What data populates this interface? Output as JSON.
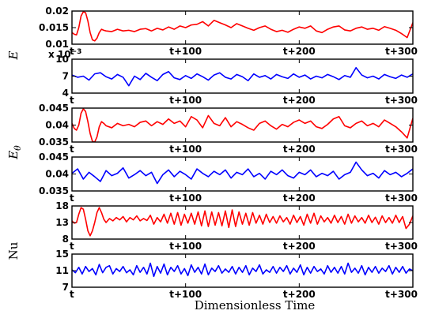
{
  "chart_data": [
    {
      "type": "line",
      "panel": 1,
      "ylim": [
        0.01,
        0.02
      ],
      "yticks": [
        "0.01",
        "0.015",
        "0.02"
      ],
      "xticks": [
        "t",
        "t+100",
        "t+200",
        "t+300"
      ],
      "xlim": [
        0,
        300
      ],
      "series": [
        {
          "color": "#ff0000",
          "x": [
            0,
            2,
            4,
            6,
            8,
            10,
            12,
            14,
            16,
            18,
            20,
            22,
            24,
            26,
            28,
            30,
            35,
            40,
            45,
            50,
            55,
            60,
            65,
            70,
            75,
            80,
            85,
            90,
            95,
            100,
            105,
            110,
            115,
            120,
            125,
            130,
            135,
            140,
            145,
            150,
            155,
            160,
            165,
            170,
            175,
            180,
            185,
            190,
            195,
            200,
            205,
            210,
            215,
            220,
            225,
            230,
            235,
            240,
            245,
            250,
            255,
            260,
            265,
            270,
            275,
            280,
            285,
            290,
            295,
            300
          ],
          "y": [
            0.0135,
            0.013,
            0.0128,
            0.015,
            0.0185,
            0.0198,
            0.0195,
            0.017,
            0.0135,
            0.0113,
            0.011,
            0.0118,
            0.0135,
            0.0145,
            0.0142,
            0.014,
            0.0138,
            0.0145,
            0.014,
            0.0142,
            0.0138,
            0.0145,
            0.0147,
            0.014,
            0.0148,
            0.0143,
            0.0152,
            0.0145,
            0.0155,
            0.015,
            0.0158,
            0.016,
            0.0168,
            0.0155,
            0.0172,
            0.0165,
            0.0158,
            0.015,
            0.0162,
            0.0155,
            0.0148,
            0.0142,
            0.015,
            0.0155,
            0.0145,
            0.0138,
            0.0142,
            0.0136,
            0.0145,
            0.0152,
            0.0148,
            0.0155,
            0.014,
            0.0135,
            0.0145,
            0.0152,
            0.0155,
            0.0143,
            0.014,
            0.0148,
            0.0152,
            0.0145,
            0.0148,
            0.0142,
            0.0153,
            0.0148,
            0.0142,
            0.0132,
            0.012,
            0.0165
          ]
        }
      ]
    },
    {
      "type": "line",
      "panel": 2,
      "ylim": [
        4,
        10
      ],
      "yticks": [
        "4",
        "7",
        "10"
      ],
      "scale_note": "x 10",
      "scale_exp": "−3",
      "xticks": [
        "t",
        "t+100",
        "t+200",
        "t+300"
      ],
      "xlim": [
        0,
        300
      ],
      "series": [
        {
          "color": "#0000ff",
          "x": [
            0,
            5,
            10,
            15,
            20,
            25,
            30,
            35,
            40,
            45,
            50,
            55,
            60,
            65,
            70,
            75,
            80,
            85,
            90,
            95,
            100,
            105,
            110,
            115,
            120,
            125,
            130,
            135,
            140,
            145,
            150,
            155,
            160,
            165,
            170,
            175,
            180,
            185,
            190,
            195,
            200,
            205,
            210,
            215,
            220,
            225,
            230,
            235,
            240,
            245,
            250,
            255,
            260,
            265,
            270,
            275,
            280,
            285,
            290,
            295,
            300
          ],
          "y": [
            7.2,
            6.8,
            7.0,
            6.3,
            7.4,
            7.6,
            6.9,
            6.5,
            7.3,
            6.8,
            5.3,
            7.0,
            6.4,
            7.5,
            6.8,
            6.2,
            7.3,
            7.8,
            6.7,
            6.4,
            7.1,
            6.6,
            7.4,
            6.9,
            6.3,
            7.2,
            7.6,
            6.8,
            6.5,
            7.3,
            6.9,
            6.2,
            7.4,
            6.8,
            7.1,
            6.5,
            7.3,
            6.9,
            6.6,
            7.4,
            6.8,
            7.2,
            6.5,
            7.0,
            6.7,
            7.3,
            6.9,
            6.4,
            7.1,
            6.8,
            8.5,
            7.2,
            6.7,
            7.0,
            6.5,
            7.3,
            6.9,
            6.6,
            7.2,
            6.8,
            7.4
          ]
        }
      ]
    },
    {
      "type": "line",
      "panel": 3,
      "ylim": [
        0.035,
        0.045
      ],
      "yticks": [
        "0.035",
        "0.04",
        "0.045"
      ],
      "xticks": [
        "t",
        "t+100",
        "t+200",
        "t+300"
      ],
      "xlim": [
        0,
        300
      ],
      "series": [
        {
          "color": "#ff0000",
          "x": [
            0,
            2,
            4,
            6,
            8,
            10,
            12,
            14,
            16,
            18,
            20,
            22,
            24,
            26,
            28,
            30,
            35,
            40,
            45,
            50,
            55,
            60,
            65,
            70,
            75,
            80,
            85,
            90,
            95,
            100,
            105,
            110,
            115,
            120,
            125,
            130,
            135,
            140,
            145,
            150,
            155,
            160,
            165,
            170,
            175,
            180,
            185,
            190,
            195,
            200,
            205,
            210,
            215,
            220,
            225,
            230,
            235,
            240,
            245,
            250,
            255,
            260,
            265,
            270,
            275,
            280,
            285,
            290,
            295,
            300
          ],
          "y": [
            0.0405,
            0.039,
            0.0385,
            0.04,
            0.0435,
            0.0448,
            0.044,
            0.041,
            0.0375,
            0.0352,
            0.035,
            0.0365,
            0.0395,
            0.041,
            0.0405,
            0.0398,
            0.0392,
            0.0405,
            0.0398,
            0.0402,
            0.0395,
            0.0408,
            0.0412,
            0.0398,
            0.041,
            0.0402,
            0.0418,
            0.0405,
            0.0412,
            0.0395,
            0.0425,
            0.0415,
            0.0392,
            0.0428,
            0.0405,
            0.0398,
            0.0422,
            0.0395,
            0.041,
            0.0402,
            0.0392,
            0.0385,
            0.0405,
            0.0412,
            0.0398,
            0.0388,
            0.0402,
            0.0395,
            0.0408,
            0.0415,
            0.0405,
            0.0412,
            0.0395,
            0.039,
            0.0402,
            0.0418,
            0.0425,
            0.0398,
            0.0392,
            0.0405,
            0.0412,
            0.0398,
            0.0405,
            0.0395,
            0.0415,
            0.0405,
            0.0395,
            0.038,
            0.0362,
            0.042
          ]
        }
      ]
    },
    {
      "type": "line",
      "panel": 4,
      "ylim": [
        0.035,
        0.045
      ],
      "yticks": [
        "0.035",
        "0.04",
        "0.045"
      ],
      "xticks": [
        "t",
        "t+100",
        "t+200",
        "t+300"
      ],
      "xlim": [
        0,
        300
      ],
      "series": [
        {
          "color": "#0000ff",
          "x": [
            0,
            5,
            10,
            15,
            20,
            25,
            30,
            35,
            40,
            45,
            50,
            55,
            60,
            65,
            70,
            75,
            80,
            85,
            90,
            95,
            100,
            105,
            110,
            115,
            120,
            125,
            130,
            135,
            140,
            145,
            150,
            155,
            160,
            165,
            170,
            175,
            180,
            185,
            190,
            195,
            200,
            205,
            210,
            215,
            220,
            225,
            230,
            235,
            240,
            245,
            250,
            255,
            260,
            265,
            270,
            275,
            280,
            285,
            290,
            295,
            300
          ],
          "y": [
            0.0402,
            0.0415,
            0.0385,
            0.0405,
            0.0392,
            0.0378,
            0.041,
            0.0395,
            0.0402,
            0.0418,
            0.0388,
            0.0398,
            0.041,
            0.0395,
            0.0405,
            0.0372,
            0.0398,
            0.0412,
            0.0392,
            0.0408,
            0.0398,
            0.0385,
            0.0415,
            0.0402,
            0.0392,
            0.0408,
            0.0398,
            0.0412,
            0.0388,
            0.0405,
            0.0398,
            0.0415,
            0.0392,
            0.0402,
            0.0385,
            0.0408,
            0.0398,
            0.0412,
            0.0395,
            0.0388,
            0.0405,
            0.0398,
            0.0412,
            0.0392,
            0.0402,
            0.0395,
            0.0408,
            0.0385,
            0.0398,
            0.0405,
            0.0435,
            0.0412,
            0.0395,
            0.0402,
            0.0388,
            0.041,
            0.0398,
            0.0405,
            0.0392,
            0.0402,
            0.0415
          ]
        }
      ]
    },
    {
      "type": "line",
      "panel": 5,
      "ylim": [
        8,
        18
      ],
      "yticks": [
        "8",
        "13",
        "18"
      ],
      "xticks": [
        "t",
        "t+100",
        "t+200",
        "t+300"
      ],
      "xlim": [
        0,
        300
      ],
      "series": [
        {
          "color": "#ff0000",
          "x": [
            0,
            2,
            4,
            6,
            8,
            10,
            12,
            14,
            16,
            18,
            20,
            22,
            24,
            26,
            28,
            30,
            33,
            36,
            39,
            42,
            45,
            48,
            51,
            54,
            57,
            60,
            63,
            66,
            69,
            72,
            75,
            78,
            81,
            84,
            87,
            90,
            93,
            96,
            99,
            102,
            105,
            108,
            111,
            114,
            117,
            120,
            123,
            126,
            129,
            132,
            135,
            138,
            141,
            144,
            147,
            150,
            153,
            156,
            159,
            162,
            165,
            168,
            171,
            174,
            177,
            180,
            183,
            186,
            189,
            192,
            195,
            198,
            201,
            204,
            207,
            210,
            213,
            216,
            219,
            222,
            225,
            228,
            231,
            234,
            237,
            240,
            243,
            246,
            249,
            252,
            255,
            258,
            261,
            264,
            267,
            270,
            273,
            276,
            279,
            282,
            285,
            288,
            291,
            294,
            297,
            300
          ],
          "y": [
            13.5,
            12.8,
            13,
            15.5,
            17.5,
            17,
            14,
            10.5,
            9,
            10.5,
            13,
            16,
            17.5,
            16,
            14,
            13,
            14.2,
            13.5,
            14.5,
            13.8,
            14.8,
            13.2,
            14.5,
            13.8,
            15,
            13.5,
            14.2,
            13.6,
            15.2,
            12.5,
            14.5,
            13.2,
            15.5,
            12.8,
            15.8,
            12.5,
            16,
            12.2,
            15.5,
            12.8,
            15.8,
            12.5,
            16.2,
            12,
            16.5,
            11.8,
            16.2,
            12.2,
            16,
            12,
            16.5,
            11.5,
            16.8,
            11.8,
            16.2,
            12.5,
            15.8,
            12.2,
            16,
            12.8,
            15.2,
            12.5,
            15.5,
            13,
            14.8,
            12.8,
            15,
            13.2,
            14.5,
            12.5,
            15.2,
            13,
            14.8,
            12.2,
            15.5,
            12.8,
            15.8,
            12.5,
            15,
            13.2,
            14.5,
            12.8,
            15.2,
            13,
            14.8,
            12.5,
            15.5,
            12.8,
            15,
            13.2,
            14.5,
            12.8,
            15.2,
            13,
            14.6,
            12.5,
            15,
            13,
            14.5,
            12.8,
            15.2,
            13,
            14.8,
            11.2,
            12.5,
            15
          ]
        }
      ]
    },
    {
      "type": "line",
      "panel": 6,
      "ylim": [
        7,
        15
      ],
      "yticks": [
        "7",
        "11",
        "15"
      ],
      "xticks": [
        "t",
        "t+100",
        "t+200",
        "t+300"
      ],
      "xlim": [
        0,
        300
      ],
      "series": [
        {
          "color": "#0000ff",
          "x": [
            0,
            3,
            6,
            9,
            12,
            15,
            18,
            21,
            24,
            27,
            30,
            33,
            36,
            39,
            42,
            45,
            48,
            51,
            54,
            57,
            60,
            63,
            66,
            69,
            72,
            75,
            78,
            81,
            84,
            87,
            90,
            93,
            96,
            99,
            102,
            105,
            108,
            111,
            114,
            117,
            120,
            123,
            126,
            129,
            132,
            135,
            138,
            141,
            144,
            147,
            150,
            153,
            156,
            159,
            162,
            165,
            168,
            171,
            174,
            177,
            180,
            183,
            186,
            189,
            192,
            195,
            198,
            201,
            204,
            207,
            210,
            213,
            216,
            219,
            222,
            225,
            228,
            231,
            234,
            237,
            240,
            243,
            246,
            249,
            252,
            255,
            258,
            261,
            264,
            267,
            270,
            273,
            276,
            279,
            282,
            285,
            288,
            291,
            294,
            297,
            300
          ],
          "y": [
            11.2,
            10.5,
            11.8,
            10.2,
            12,
            10.8,
            11.5,
            10,
            12.5,
            10.5,
            11.8,
            12.2,
            10.2,
            11.5,
            10.8,
            12,
            10.5,
            11.2,
            10,
            12.2,
            10.6,
            11.8,
            10.2,
            12.8,
            9.6,
            12,
            10.4,
            12.6,
            10,
            11.8,
            10.8,
            12.2,
            10.2,
            11.5,
            9.8,
            12.4,
            10.6,
            11.8,
            10.2,
            12.6,
            10,
            11.6,
            10.8,
            12.2,
            10.4,
            11.4,
            10.6,
            12,
            10.2,
            11.8,
            10.6,
            12.2,
            10,
            11.6,
            10.8,
            12.4,
            10.2,
            11.2,
            10.6,
            12,
            10.4,
            11.8,
            10.8,
            12.2,
            10.2,
            11.6,
            10.6,
            12.4,
            10,
            11.8,
            10.4,
            12,
            10.8,
            11.4,
            10.2,
            12.2,
            10.6,
            11.8,
            10.4,
            12,
            10.2,
            12.8,
            10.6,
            11.6,
            10.4,
            12.2,
            10,
            11.8,
            10.6,
            12,
            10.4,
            11.6,
            10.8,
            12.2,
            10.2,
            11.8,
            10.6,
            12,
            10.4,
            11.4,
            11
          ]
        }
      ]
    }
  ],
  "labels": {
    "panel1_ylabel": "E",
    "panel3_ylabel": "E",
    "panel3_ylabel_sub": "θ",
    "panel5_ylabel": "Nu",
    "xlabel": "Dimensionless Time"
  }
}
